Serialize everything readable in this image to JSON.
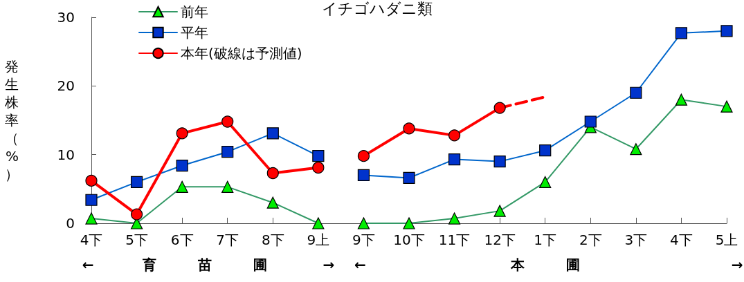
{
  "chart_data": {
    "type": "line",
    "title": "イチゴハダニ類",
    "ylabel": "発生株率（%）",
    "categories": [
      "4下",
      "5下",
      "6下",
      "7下",
      "8下",
      "9上",
      "9下",
      "10下",
      "11下",
      "12下",
      "1下",
      "2下",
      "3下",
      "4下",
      "5上"
    ],
    "series": [
      {
        "name": "前年",
        "color": "#339966",
        "marker": "triangle",
        "values": [
          0.7,
          0,
          5.3,
          5.3,
          3.0,
          0,
          null,
          null,
          null,
          null,
          null,
          null,
          null,
          null,
          null
        ]
      },
      {
        "color": "#339966",
        "marker": "triangle",
        "values": [
          null,
          null,
          null,
          null,
          null,
          null,
          0,
          0,
          0.7,
          1.8,
          6.0,
          14.0,
          10.8,
          18.0,
          17.0
        ]
      },
      {
        "name": "平年",
        "color": "#0066cc",
        "marker": "square",
        "values": [
          3.4,
          6.0,
          8.4,
          10.4,
          13.1,
          9.8,
          null,
          null,
          null,
          null,
          null,
          null,
          null,
          null,
          null
        ]
      },
      {
        "color": "#0066cc",
        "marker": "square",
        "values": [
          null,
          null,
          null,
          null,
          null,
          null,
          7.0,
          6.6,
          9.3,
          9.0,
          10.6,
          14.8,
          19.0,
          27.7,
          28.0
        ]
      },
      {
        "name": "本年(破線は予測値)",
        "color": "#ff0000",
        "marker": "circle",
        "values": [
          6.2,
          1.3,
          13.1,
          14.8,
          7.3,
          8.1,
          null,
          null,
          null,
          null,
          null,
          null,
          null,
          null,
          null
        ]
      },
      {
        "color": "#ff0000",
        "marker": "circle",
        "values": [
          null,
          null,
          null,
          null,
          null,
          null,
          9.8,
          13.8,
          12.8,
          16.8,
          null,
          null,
          null,
          null,
          null
        ]
      },
      {
        "color": "#ff0000",
        "marker": "none",
        "line_style": "dashed",
        "values": [
          null,
          null,
          null,
          null,
          null,
          null,
          null,
          null,
          null,
          16.8,
          18.4,
          null,
          null,
          null,
          null
        ]
      }
    ],
    "ylim": [
      0,
      30
    ],
    "yticks": [
      0,
      10,
      20,
      30
    ],
    "grid": false,
    "legend": "top left",
    "annotations": [
      "← 育 苗 圃 →",
      "← 本 圃 →"
    ]
  }
}
